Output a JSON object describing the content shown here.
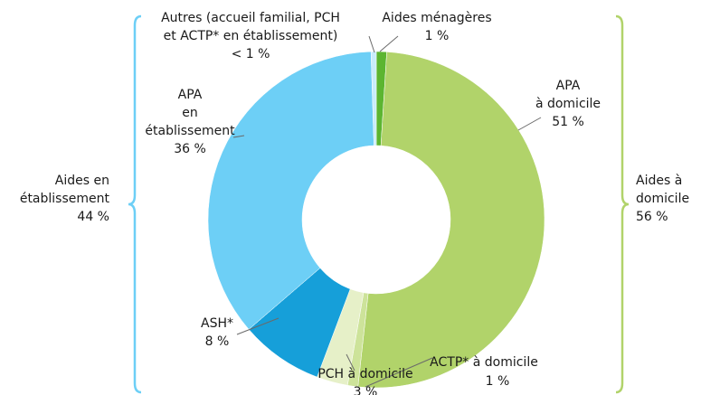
{
  "chart_data": {
    "type": "donut",
    "categories": [
      "Aides ménagères",
      "APA\nà domicile",
      "ACTP* à domicile",
      "PCH à domicile",
      "ASH*",
      "APA\nen\nétablissement",
      "Autres (accueil familial, PCH\net ACTP* en établissement)"
    ],
    "values": [
      1,
      51,
      1,
      3,
      8,
      36,
      0.5
    ],
    "value_labels": [
      "1 %",
      "51 %",
      "1 %",
      "3 %",
      "8 %",
      "36 %",
      "< 1 %"
    ],
    "colors": [
      "#5cb531",
      "#b1d36a",
      "#cde39a",
      "#e6f0c8",
      "#169fd9",
      "#6dcff6",
      "#c9ecfb"
    ],
    "groups": [
      {
        "label": "Aides à\ndomicile",
        "value": 56,
        "value_label": "56 %",
        "color": "#b1d36a"
      },
      {
        "label": "Aides en\nétablissement",
        "value": 44,
        "value_label": "44 %",
        "color": "#6dcff6"
      }
    ]
  }
}
